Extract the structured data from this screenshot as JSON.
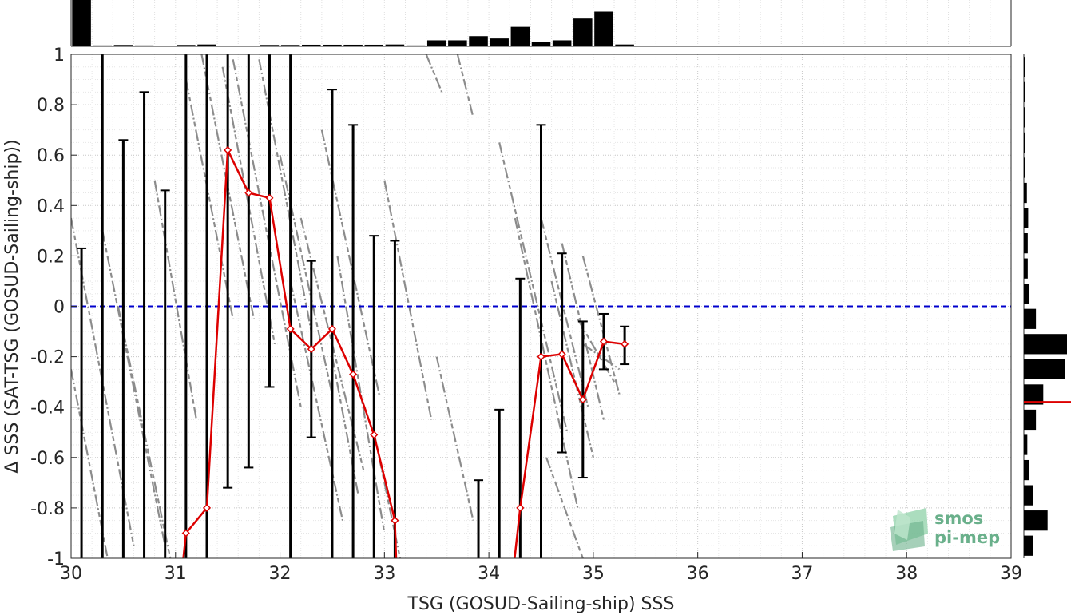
{
  "chart_data": {
    "type": "scatter",
    "xlabel": "TSG (GOSUD-Sailing-ship) SSS",
    "ylabel": "Δ SSS (SAT-TSG (GOSUD-Sailing-ship))",
    "xlim": [
      30,
      39
    ],
    "ylim": [
      -1,
      1
    ],
    "x_ticks": [
      "30",
      "31",
      "32",
      "33",
      "34",
      "35",
      "36",
      "37",
      "38",
      "39"
    ],
    "y_ticks": [
      "1",
      "0.8",
      "0.6",
      "0.4",
      "0.2",
      "0",
      "-0.2",
      "-0.4",
      "-0.6",
      "-0.8",
      "-1"
    ],
    "grid": true,
    "reference_line": {
      "y": 0,
      "style": "dashed",
      "color": "#0000cc"
    },
    "mean_line": {
      "color": "#dd0000",
      "x": [
        31.1,
        31.3,
        31.5,
        31.7,
        31.9,
        32.1,
        32.3,
        32.5,
        32.7,
        32.9,
        33.1,
        34.3,
        34.5,
        34.7,
        34.9,
        35.1,
        35.3
      ],
      "y": [
        -0.9,
        -0.8,
        0.62,
        0.45,
        0.43,
        -0.09,
        -0.17,
        -0.09,
        -0.27,
        -0.51,
        -0.85,
        -0.8,
        -0.2,
        -0.19,
        -0.37,
        -0.14,
        -0.15
      ]
    },
    "error_bars": {
      "color": "#000000",
      "x": [
        30.1,
        30.3,
        30.5,
        30.7,
        30.9,
        31.1,
        31.3,
        31.5,
        31.7,
        31.9,
        32.1,
        32.3,
        32.5,
        32.7,
        32.9,
        33.1,
        33.9,
        34.1,
        34.3,
        34.5,
        34.7,
        34.9,
        35.1,
        35.3
      ],
      "low": [
        -1.0,
        -1.0,
        -1.0,
        -1.0,
        -1.0,
        -1.0,
        -1.0,
        -0.72,
        -0.64,
        -0.32,
        -1.0,
        -0.52,
        -1.0,
        -1.0,
        -1.0,
        -1.0,
        -1.0,
        -1.0,
        -1.0,
        -1.0,
        -0.58,
        -0.68,
        -0.25,
        -0.23
      ],
      "high": [
        0.23,
        1.0,
        0.66,
        0.85,
        0.46,
        1.0,
        1.0,
        1.0,
        1.0,
        1.0,
        1.0,
        0.18,
        0.86,
        0.72,
        0.28,
        0.26,
        -0.69,
        -0.41,
        0.11,
        0.72,
        0.21,
        -0.06,
        -0.03,
        -0.08
      ]
    },
    "scatter_streaks": [
      {
        "x1": 30.0,
        "y1": 0.35,
        "x2": 30.6,
        "y2": -0.95
      },
      {
        "x1": 30.0,
        "y1": -0.25,
        "x2": 30.35,
        "y2": -1.0
      },
      {
        "x1": 30.3,
        "y1": 0.3,
        "x2": 30.9,
        "y2": -0.95
      },
      {
        "x1": 30.45,
        "y1": 0.0,
        "x2": 30.95,
        "y2": -1.0
      },
      {
        "x1": 30.8,
        "y1": 0.5,
        "x2": 31.2,
        "y2": -0.45
      },
      {
        "x1": 31.1,
        "y1": 0.9,
        "x2": 31.55,
        "y2": -0.05
      },
      {
        "x1": 31.25,
        "y1": 1.0,
        "x2": 31.75,
        "y2": -0.05
      },
      {
        "x1": 31.45,
        "y1": 0.95,
        "x2": 31.95,
        "y2": -0.15
      },
      {
        "x1": 31.55,
        "y1": 0.98,
        "x2": 32.2,
        "y2": -0.4
      },
      {
        "x1": 31.8,
        "y1": 0.98,
        "x2": 32.3,
        "y2": -0.1
      },
      {
        "x1": 32.0,
        "y1": 0.6,
        "x2": 32.5,
        "y2": -0.35
      },
      {
        "x1": 32.2,
        "y1": 0.35,
        "x2": 32.8,
        "y2": -0.65
      },
      {
        "x1": 32.4,
        "y1": 0.7,
        "x2": 32.95,
        "y2": -0.35
      },
      {
        "x1": 32.55,
        "y1": 0.2,
        "x2": 33.0,
        "y2": -0.9
      },
      {
        "x1": 32.1,
        "y1": 0.1,
        "x2": 32.6,
        "y2": -0.85
      },
      {
        "x1": 32.9,
        "y1": -0.5,
        "x2": 33.15,
        "y2": -1.0
      },
      {
        "x1": 32.5,
        "y1": -0.2,
        "x2": 32.75,
        "y2": -0.75
      },
      {
        "x1": 33.4,
        "y1": 1.0,
        "x2": 33.55,
        "y2": 0.85
      },
      {
        "x1": 33.7,
        "y1": 1.0,
        "x2": 33.85,
        "y2": 0.75
      },
      {
        "x1": 34.1,
        "y1": 0.65,
        "x2": 34.75,
        "y2": -0.5
      },
      {
        "x1": 34.25,
        "y1": 0.35,
        "x2": 34.85,
        "y2": -0.8
      },
      {
        "x1": 34.5,
        "y1": 0.35,
        "x2": 34.95,
        "y2": -0.4
      },
      {
        "x1": 34.6,
        "y1": 0.1,
        "x2": 35.0,
        "y2": -0.6
      },
      {
        "x1": 34.7,
        "y1": 0.25,
        "x2": 35.1,
        "y2": -0.45
      },
      {
        "x1": 34.9,
        "y1": 0.2,
        "x2": 35.25,
        "y2": -0.35
      },
      {
        "x1": 34.55,
        "y1": -0.6,
        "x2": 34.9,
        "y2": -1.0
      },
      {
        "x1": 33.5,
        "y1": -0.2,
        "x2": 33.85,
        "y2": -0.85
      },
      {
        "x1": 33.0,
        "y1": 0.5,
        "x2": 33.45,
        "y2": -0.45
      },
      {
        "x1": 34.85,
        "y1": -0.05,
        "x2": 35.2,
        "y2": -0.3
      },
      {
        "x1": 34.9,
        "y1": -0.15,
        "x2": 35.25,
        "y2": -0.25
      }
    ],
    "top_histogram": {
      "x": [
        30.1,
        30.3,
        30.5,
        30.7,
        30.9,
        31.1,
        31.3,
        31.5,
        31.7,
        31.9,
        32.1,
        32.3,
        32.5,
        32.7,
        32.9,
        33.1,
        33.3,
        33.5,
        33.7,
        33.9,
        34.1,
        34.3,
        34.5,
        34.7,
        34.9,
        35.1,
        35.3
      ],
      "values": [
        1.0,
        0.02,
        0.03,
        0.02,
        0.015,
        0.03,
        0.04,
        0.015,
        0.015,
        0.03,
        0.03,
        0.035,
        0.035,
        0.035,
        0.035,
        0.04,
        0.02,
        0.13,
        0.13,
        0.22,
        0.17,
        0.42,
        0.09,
        0.13,
        0.6,
        0.75,
        0.04
      ]
    },
    "right_histogram": {
      "y": [
        0.95,
        0.85,
        0.75,
        0.65,
        0.55,
        0.45,
        0.35,
        0.25,
        0.15,
        0.05,
        -0.05,
        -0.15,
        -0.25,
        -0.35,
        -0.45,
        -0.55,
        -0.65,
        -0.75,
        -0.85,
        -0.95
      ],
      "values": [
        0.02,
        0.02,
        0.02,
        0.03,
        0.03,
        0.07,
        0.1,
        0.09,
        0.09,
        0.13,
        0.28,
        1.0,
        0.96,
        0.45,
        0.28,
        0.08,
        0.13,
        0.22,
        0.55,
        0.22
      ],
      "mean_marker": -0.38
    }
  },
  "logo": {
    "line1": "smos",
    "line2": "pi-mep",
    "color": "#6ab08b"
  }
}
